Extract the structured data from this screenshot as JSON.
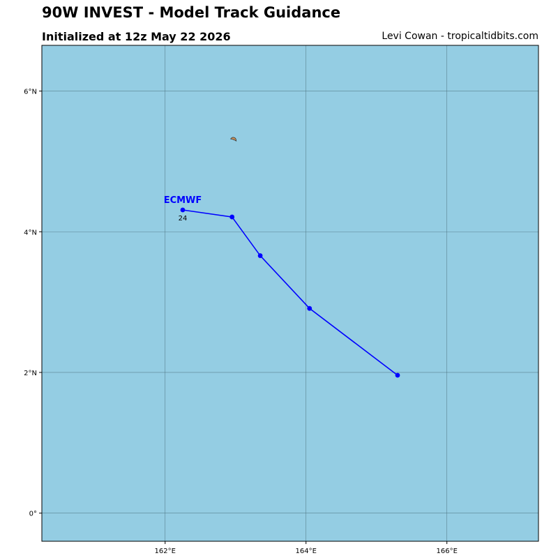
{
  "header": {
    "title": "90W INVEST - Model Track Guidance",
    "subtitle": "Initialized at 12z May 22 2026",
    "credit": "Levi Cowan - tropicaltidbits.com"
  },
  "colors": {
    "ocean": "#94cde3",
    "land": "#c8915a",
    "track": "#0000ff",
    "grid": "#4a6e7a"
  },
  "chart_data": {
    "type": "map",
    "lon_range": [
      160.25,
      167.3
    ],
    "lat_range": [
      -0.4,
      6.65
    ],
    "lon_ticks": [
      {
        "value": 162,
        "label": "162°E"
      },
      {
        "value": 164,
        "label": "164°E"
      },
      {
        "value": 166,
        "label": "166°E"
      }
    ],
    "lat_ticks": [
      {
        "value": 6,
        "label": "6°N"
      },
      {
        "value": 4,
        "label": "4°N"
      },
      {
        "value": 2,
        "label": "2°N"
      },
      {
        "value": 0,
        "label": "0°"
      }
    ],
    "grid": true,
    "land": [
      {
        "name": "island",
        "lon": 162.97,
        "lat": 5.32
      }
    ],
    "tracks": [
      {
        "name": "ECMWF",
        "start_hour_label": "24",
        "points": [
          {
            "lon": 162.25,
            "lat": 4.31
          },
          {
            "lon": 162.95,
            "lat": 4.21
          },
          {
            "lon": 163.35,
            "lat": 3.66
          },
          {
            "lon": 164.05,
            "lat": 2.91
          },
          {
            "lon": 165.3,
            "lat": 1.96
          }
        ]
      }
    ]
  }
}
